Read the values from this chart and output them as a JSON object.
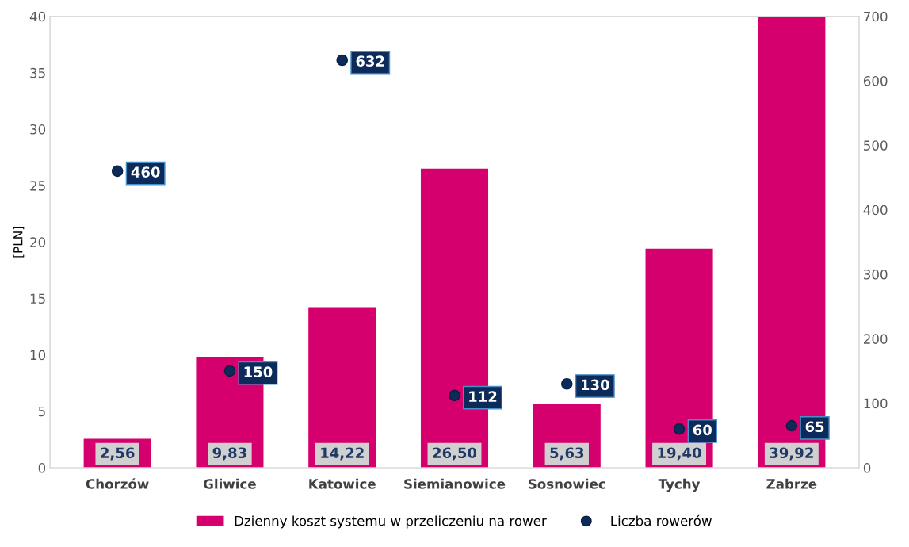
{
  "chart_data": {
    "type": "bar",
    "ylabel": "[PLN]",
    "categories": [
      "Chorzów",
      "Gliwice",
      "Katowice",
      "Siemianowice",
      "Sosnowiec",
      "Tychy",
      "Zabrze"
    ],
    "series": [
      {
        "name": "Dzienny koszt systemu w przeliczeniu na rower",
        "color": "#d5006d",
        "values": [
          2.56,
          9.83,
          14.22,
          26.5,
          5.63,
          19.4,
          39.92
        ],
        "value_labels": [
          "2,56",
          "9,83",
          "14,22",
          "26,50",
          "5,63",
          "19,40",
          "39,92"
        ]
      },
      {
        "name": "Liczba rowerów",
        "type": "scatter",
        "axis": "y2",
        "color": "#0c2a5a",
        "values": [
          460,
          150,
          632,
          112,
          130,
          60,
          65
        ],
        "value_labels": [
          "460",
          "150",
          "632",
          "112",
          "130",
          "60",
          "65"
        ]
      }
    ],
    "ylim": [
      0,
      40
    ],
    "yticks": [
      0,
      5,
      10,
      15,
      20,
      25,
      30,
      35,
      40
    ],
    "y2lim": [
      0,
      700
    ],
    "y2ticks": [
      0,
      100,
      200,
      300,
      400,
      500,
      600,
      700
    ],
    "grid": false,
    "legend": "bottom",
    "marker": "circle"
  }
}
